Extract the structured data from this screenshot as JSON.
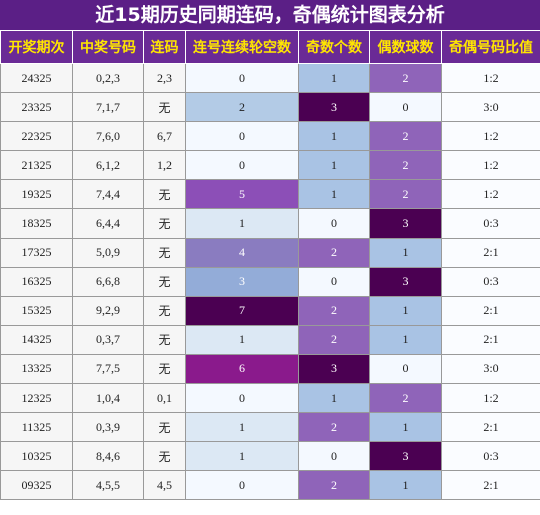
{
  "header": {
    "title": "近15期历史同期连码，奇偶统计图表分析"
  },
  "table": {
    "columns": [
      "开奖期次",
      "中奖号码",
      "连码",
      "连号连续轮空数",
      "奇数个数",
      "偶数球数",
      "奇偶号码比值"
    ],
    "rows": [
      [
        "24325",
        "0,2,3",
        "2,3",
        0,
        1,
        2,
        "1:2"
      ],
      [
        "23325",
        "7,1,7",
        "无",
        2,
        3,
        0,
        "3:0"
      ],
      [
        "22325",
        "7,6,0",
        "6,7",
        0,
        1,
        2,
        "1:2"
      ],
      [
        "21325",
        "6,1,2",
        "1,2",
        0,
        1,
        2,
        "1:2"
      ],
      [
        "19325",
        "7,4,4",
        "无",
        5,
        1,
        2,
        "1:2"
      ],
      [
        "18325",
        "6,4,4",
        "无",
        1,
        0,
        3,
        "0:3"
      ],
      [
        "17325",
        "5,0,9",
        "无",
        4,
        2,
        1,
        "2:1"
      ],
      [
        "16325",
        "6,6,8",
        "无",
        3,
        0,
        3,
        "0:3"
      ],
      [
        "15325",
        "9,2,9",
        "无",
        7,
        2,
        1,
        "2:1"
      ],
      [
        "14325",
        "0,3,7",
        "无",
        1,
        2,
        1,
        "2:1"
      ],
      [
        "13325",
        "7,7,5",
        "无",
        6,
        3,
        0,
        "3:0"
      ],
      [
        "12325",
        "1,0,4",
        "0,1",
        0,
        1,
        2,
        "1:2"
      ],
      [
        "11325",
        "0,3,9",
        "无",
        1,
        2,
        1,
        "2:1"
      ],
      [
        "10325",
        "8,4,6",
        "无",
        1,
        0,
        3,
        "0:3"
      ],
      [
        "09325",
        "4,5,5",
        "4,5",
        0,
        2,
        1,
        "2:1"
      ]
    ]
  }
}
